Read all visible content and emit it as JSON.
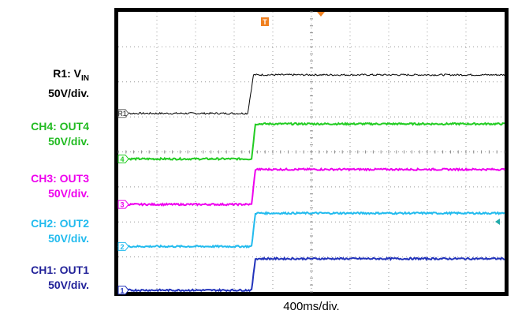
{
  "channels": [
    {
      "id": "R1",
      "marker": "R1",
      "name_main": "R1: V",
      "name_sub": "IN",
      "scale": "50V/div.",
      "color": "#000000"
    },
    {
      "id": "CH4",
      "marker": "4",
      "name_main": "CH4: OUT4",
      "name_sub": "",
      "scale": "50V/div.",
      "color": "#22cc22"
    },
    {
      "id": "CH3",
      "marker": "3",
      "name_main": "CH3: OUT3",
      "name_sub": "",
      "scale": "50V/div.",
      "color": "#ee00ee"
    },
    {
      "id": "CH2",
      "marker": "2",
      "name_main": "CH2: OUT2",
      "name_sub": "",
      "scale": "50V/div.",
      "color": "#22bbee"
    },
    {
      "id": "CH1",
      "marker": "1",
      "name_main": "CH1: OUT1",
      "name_sub": "",
      "scale": "50V/div.",
      "color": "#2233bb"
    }
  ],
  "timebase": "400ms/div.",
  "trigger_marker": "T",
  "accent_colors": {
    "trigger": "#f08020",
    "trace_bg": "#ffffff",
    "frame": "#000000"
  },
  "chart_data": {
    "type": "line",
    "title": "",
    "xlabel": "400ms/div.",
    "ylabel": "",
    "x_divisions": 10,
    "y_divisions": 8,
    "xlim": [
      0,
      10
    ],
    "ylim": [
      0,
      8
    ],
    "grid": true,
    "trigger_time_div": 3.5,
    "series": [
      {
        "name": "R1: VIN",
        "x": [
          0,
          3.35,
          3.5,
          10
        ],
        "y": [
          5.1,
          5.1,
          6.2,
          6.2
        ],
        "color": "#000000"
      },
      {
        "name": "CH4: OUT4",
        "x": [
          0,
          3.45,
          3.55,
          10
        ],
        "y": [
          3.8,
          3.8,
          4.8,
          4.8
        ],
        "color": "#22cc22"
      },
      {
        "name": "CH3: OUT3",
        "x": [
          0,
          3.45,
          3.55,
          10
        ],
        "y": [
          2.5,
          2.5,
          3.5,
          3.5
        ],
        "color": "#ee00ee"
      },
      {
        "name": "CH2: OUT2",
        "x": [
          0,
          3.45,
          3.55,
          10
        ],
        "y": [
          1.3,
          1.3,
          2.25,
          2.25
        ],
        "color": "#22bbee"
      },
      {
        "name": "CH1: OUT1",
        "x": [
          0,
          3.45,
          3.55,
          10
        ],
        "y": [
          0.05,
          0.05,
          0.95,
          0.95
        ],
        "color": "#2233bb"
      }
    ]
  }
}
